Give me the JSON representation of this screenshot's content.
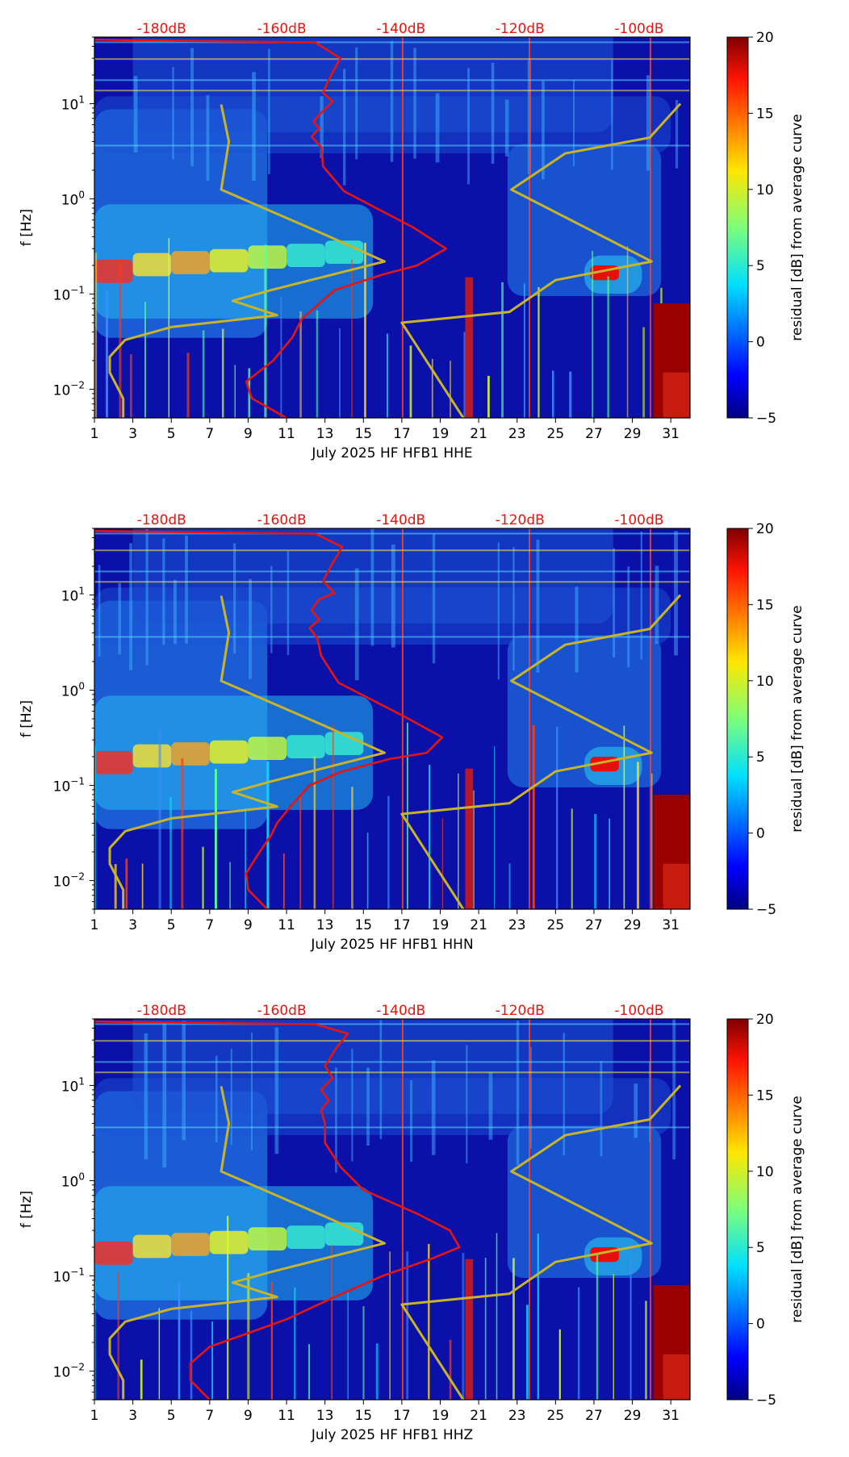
{
  "chart_data": [
    {
      "type": "heatmap",
      "xlabel": "July 2025 HF HFB1  HHE",
      "ylabel": "f [Hz]",
      "colorbar_label": "residual [dB] from average curve",
      "xlim": [
        1,
        32
      ],
      "ylim": [
        0.005,
        50
      ],
      "x_ticks": [
        1,
        3,
        5,
        7,
        9,
        11,
        13,
        15,
        17,
        19,
        21,
        23,
        25,
        27,
        29,
        31
      ],
      "y_ticks": [
        {
          "value": 0.01,
          "base": "10",
          "exp": "−2"
        },
        {
          "value": 0.1,
          "base": "10",
          "exp": "−1"
        },
        {
          "value": 1,
          "base": "10",
          "exp": "0"
        },
        {
          "value": 10,
          "base": "10",
          "exp": "1"
        }
      ],
      "db_scale_labels": [
        {
          "label": "-180dB",
          "x": 4.5
        },
        {
          "label": "-160dB",
          "x": 10.75
        },
        {
          "label": "-140dB",
          "x": 16.95
        },
        {
          "label": "-120dB",
          "x": 23.15
        },
        {
          "label": "-100dB",
          "x": 29.35
        }
      ],
      "colorbar": {
        "min": -5,
        "max": 20,
        "ticks": [
          "−5",
          "0",
          "5",
          "10",
          "15",
          "20"
        ],
        "tick_values": [
          -5,
          0,
          5,
          10,
          15,
          20
        ]
      },
      "series": [
        {
          "name": "reference model (yellow)",
          "color": "#c8b428",
          "points": [
            [
              2.5,
              0.005
            ],
            [
              2.5,
              0.008
            ],
            [
              1.8,
              0.015
            ],
            [
              1.8,
              0.022
            ],
            [
              2.6,
              0.033
            ],
            [
              5,
              0.045
            ],
            [
              10.5,
              0.06
            ],
            [
              8.2,
              0.085
            ],
            [
              10.2,
              0.11
            ],
            [
              16.1,
              0.22
            ],
            [
              13,
              0.42
            ],
            [
              7.6,
              1.25
            ],
            [
              8,
              4
            ],
            [
              7.6,
              9.8
            ]
          ]
        },
        {
          "name": "reference model (yellow)",
          "color": "#c8b428",
          "points": [
            [
              20.2,
              0.005
            ],
            [
              17,
              0.05
            ],
            [
              22.6,
              0.065
            ],
            [
              25,
              0.14
            ],
            [
              30,
              0.22
            ],
            [
              22.7,
              1.25
            ],
            [
              25.5,
              3
            ],
            [
              29.9,
              4.4
            ],
            [
              31.5,
              10
            ]
          ]
        },
        {
          "name": "average PSD (red)",
          "color": "#e8140f",
          "points": [
            [
              11,
              0.005
            ],
            [
              9.2,
              0.008
            ],
            [
              8.9,
              0.012
            ],
            [
              10.3,
              0.02
            ],
            [
              11.3,
              0.035
            ],
            [
              11.8,
              0.055
            ],
            [
              13.5,
              0.11
            ],
            [
              16,
              0.16
            ],
            [
              17.8,
              0.2
            ],
            [
              19.3,
              0.3
            ],
            [
              17.6,
              0.5
            ],
            [
              14,
              1.2
            ],
            [
              12.9,
              2.2
            ],
            [
              12.8,
              3.5
            ],
            [
              12.3,
              4.5
            ],
            [
              12.7,
              5.5
            ],
            [
              12.4,
              6.5
            ],
            [
              12.8,
              8
            ],
            [
              13.4,
              10.5
            ],
            [
              12.9,
              13
            ],
            [
              13.2,
              18
            ],
            [
              13.8,
              30
            ],
            [
              12.5,
              44
            ],
            [
              1,
              47
            ]
          ]
        }
      ]
    },
    {
      "type": "heatmap",
      "xlabel": "July 2025 HF HFB1  HHN",
      "ylabel": "f [Hz]",
      "colorbar_label": "residual [dB] from average curve",
      "xlim": [
        1,
        32
      ],
      "ylim": [
        0.005,
        50
      ],
      "x_ticks": [
        1,
        3,
        5,
        7,
        9,
        11,
        13,
        15,
        17,
        19,
        21,
        23,
        25,
        27,
        29,
        31
      ],
      "y_ticks": [
        {
          "value": 0.01,
          "base": "10",
          "exp": "−2"
        },
        {
          "value": 0.1,
          "base": "10",
          "exp": "−1"
        },
        {
          "value": 1,
          "base": "10",
          "exp": "0"
        },
        {
          "value": 10,
          "base": "10",
          "exp": "1"
        }
      ],
      "db_scale_labels": [
        {
          "label": "-180dB",
          "x": 4.5
        },
        {
          "label": "-160dB",
          "x": 10.75
        },
        {
          "label": "-140dB",
          "x": 16.95
        },
        {
          "label": "-120dB",
          "x": 23.15
        },
        {
          "label": "-100dB",
          "x": 29.35
        }
      ],
      "colorbar": {
        "min": -5,
        "max": 20,
        "ticks": [
          "−5",
          "0",
          "5",
          "10",
          "15",
          "20"
        ],
        "tick_values": [
          -5,
          0,
          5,
          10,
          15,
          20
        ]
      },
      "series": [
        {
          "name": "reference model (yellow)",
          "color": "#c8b428",
          "points": [
            [
              2.5,
              0.005
            ],
            [
              2.5,
              0.008
            ],
            [
              1.8,
              0.015
            ],
            [
              1.8,
              0.022
            ],
            [
              2.6,
              0.033
            ],
            [
              5,
              0.045
            ],
            [
              10.5,
              0.06
            ],
            [
              8.2,
              0.085
            ],
            [
              10.2,
              0.11
            ],
            [
              16.1,
              0.22
            ],
            [
              13,
              0.42
            ],
            [
              7.6,
              1.25
            ],
            [
              8,
              4
            ],
            [
              7.6,
              9.8
            ]
          ]
        },
        {
          "name": "reference model (yellow)",
          "color": "#c8b428",
          "points": [
            [
              20.2,
              0.005
            ],
            [
              17,
              0.05
            ],
            [
              22.6,
              0.065
            ],
            [
              25,
              0.14
            ],
            [
              30,
              0.22
            ],
            [
              22.7,
              1.25
            ],
            [
              25.5,
              3
            ],
            [
              29.9,
              4.4
            ],
            [
              31.5,
              10
            ]
          ]
        },
        {
          "name": "average PSD (red)",
          "color": "#e8140f",
          "points": [
            [
              10,
              0.005
            ],
            [
              9,
              0.008
            ],
            [
              8.9,
              0.012
            ],
            [
              9.6,
              0.02
            ],
            [
              10.2,
              0.03
            ],
            [
              10.5,
              0.04
            ],
            [
              11.2,
              0.06
            ],
            [
              12.2,
              0.1
            ],
            [
              13.9,
              0.14
            ],
            [
              16.4,
              0.19
            ],
            [
              18.3,
              0.22
            ],
            [
              19.1,
              0.32
            ],
            [
              17.2,
              0.52
            ],
            [
              13.7,
              1.2
            ],
            [
              12.8,
              2.3
            ],
            [
              12.6,
              3.5
            ],
            [
              12.2,
              4.5
            ],
            [
              12.7,
              5.5
            ],
            [
              12.3,
              7
            ],
            [
              12.7,
              9
            ],
            [
              13.5,
              10.5
            ],
            [
              12.9,
              14
            ],
            [
              13.3,
              20
            ],
            [
              13.9,
              32
            ],
            [
              12.5,
              44
            ],
            [
              1,
              47
            ]
          ]
        }
      ]
    },
    {
      "type": "heatmap",
      "xlabel": "July 2025 HF HFB1  HHZ",
      "ylabel": "f [Hz]",
      "colorbar_label": "residual [dB] from average curve",
      "xlim": [
        1,
        32
      ],
      "ylim": [
        0.005,
        50
      ],
      "x_ticks": [
        1,
        3,
        5,
        7,
        9,
        11,
        13,
        15,
        17,
        19,
        21,
        23,
        25,
        27,
        29,
        31
      ],
      "y_ticks": [
        {
          "value": 0.01,
          "base": "10",
          "exp": "−2"
        },
        {
          "value": 0.1,
          "base": "10",
          "exp": "−1"
        },
        {
          "value": 1,
          "base": "10",
          "exp": "0"
        },
        {
          "value": 10,
          "base": "10",
          "exp": "1"
        }
      ],
      "db_scale_labels": [
        {
          "label": "-180dB",
          "x": 4.5
        },
        {
          "label": "-160dB",
          "x": 10.75
        },
        {
          "label": "-140dB",
          "x": 16.95
        },
        {
          "label": "-120dB",
          "x": 23.15
        },
        {
          "label": "-100dB",
          "x": 29.35
        }
      ],
      "colorbar": {
        "min": -5,
        "max": 20,
        "ticks": [
          "−5",
          "0",
          "5",
          "10",
          "15",
          "20"
        ],
        "tick_values": [
          -5,
          0,
          5,
          10,
          15,
          20
        ]
      },
      "series": [
        {
          "name": "reference model (yellow)",
          "color": "#c8b428",
          "points": [
            [
              2.5,
              0.005
            ],
            [
              2.5,
              0.008
            ],
            [
              1.8,
              0.015
            ],
            [
              1.8,
              0.022
            ],
            [
              2.6,
              0.033
            ],
            [
              5,
              0.045
            ],
            [
              10.5,
              0.06
            ],
            [
              8.2,
              0.085
            ],
            [
              10.2,
              0.11
            ],
            [
              16.1,
              0.22
            ],
            [
              13,
              0.42
            ],
            [
              7.6,
              1.25
            ],
            [
              8,
              4
            ],
            [
              7.6,
              9.8
            ]
          ]
        },
        {
          "name": "reference model (yellow)",
          "color": "#c8b428",
          "points": [
            [
              20.2,
              0.005
            ],
            [
              17,
              0.05
            ],
            [
              22.6,
              0.065
            ],
            [
              25,
              0.14
            ],
            [
              30,
              0.22
            ],
            [
              22.7,
              1.25
            ],
            [
              25.5,
              3
            ],
            [
              29.9,
              4.4
            ],
            [
              31.5,
              10
            ]
          ]
        },
        {
          "name": "average PSD (red)",
          "color": "#e8140f",
          "points": [
            [
              7,
              0.005
            ],
            [
              6,
              0.008
            ],
            [
              6,
              0.012
            ],
            [
              7,
              0.018
            ],
            [
              9,
              0.025
            ],
            [
              11,
              0.035
            ],
            [
              13.5,
              0.06
            ],
            [
              16,
              0.1
            ],
            [
              18.5,
              0.15
            ],
            [
              20,
              0.2
            ],
            [
              19.5,
              0.3
            ],
            [
              17.8,
              0.45
            ],
            [
              15,
              0.8
            ],
            [
              13.8,
              1.4
            ],
            [
              13,
              2.5
            ],
            [
              13,
              4
            ],
            [
              12.8,
              5.5
            ],
            [
              13.2,
              7
            ],
            [
              12.8,
              9
            ],
            [
              13.4,
              12
            ],
            [
              13,
              16
            ],
            [
              13.6,
              25
            ],
            [
              14.2,
              35
            ],
            [
              12.5,
              44
            ],
            [
              1,
              47
            ]
          ]
        }
      ]
    }
  ]
}
